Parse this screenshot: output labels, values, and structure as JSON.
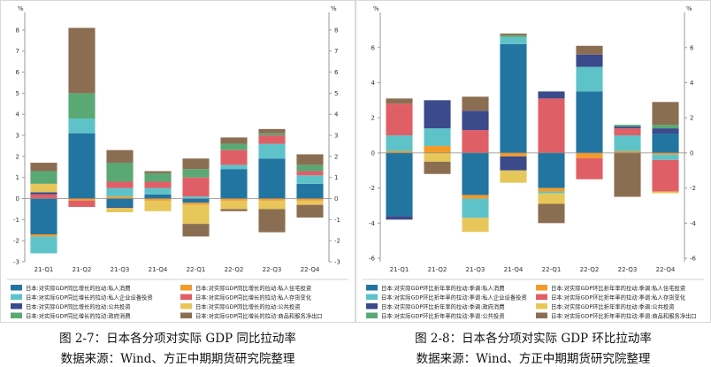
{
  "chart_data": [
    {
      "type": "bar",
      "stacked": true,
      "unit_label": "%",
      "categories": [
        "21-Q1",
        "21-Q2",
        "21-Q3",
        "21-Q4",
        "22-Q1",
        "22-Q2",
        "22-Q3",
        "22-Q4"
      ],
      "ylim": [
        -3,
        8.5
      ],
      "yticks": [
        -3,
        -2,
        -1,
        0,
        1,
        2,
        3,
        4,
        5,
        6,
        7,
        8
      ],
      "grid": false,
      "legend_position": "bottom",
      "series": [
        {
          "name": "日本:对实际GDP同比增长的拉动:私人消费",
          "color": "#2275a1",
          "values": [
            -1.7,
            3.1,
            -0.4,
            0.2,
            -0.2,
            1.4,
            1.9,
            0.7
          ]
        },
        {
          "name": "日本:对实际GDP同比增长的拉动:私人住宅投资",
          "color": "#f39b2a",
          "values": [
            -0.1,
            -0.1,
            0.1,
            -0.1,
            -0.1,
            -0.1,
            -0.1,
            -0.1
          ]
        },
        {
          "name": "日本:对实际GDP同比增长的拉动:私人企业设备投资",
          "color": "#5ec3c9",
          "values": [
            -0.8,
            0.7,
            0.4,
            0.3,
            0.1,
            0.2,
            0.7,
            0.4
          ]
        },
        {
          "name": "日本:对实际GDP同比增长的拉动:私人存货变化",
          "color": "#e05f67",
          "values": [
            0.2,
            -0.3,
            0.3,
            0.3,
            0.9,
            0.7,
            0.4,
            0.2
          ]
        },
        {
          "name": "日本:对实际GDP同比增长的拉动:公共投资",
          "color": "#3b4a8a",
          "values": [
            0.1,
            0.0,
            -0.05,
            0.0,
            0.0,
            0.0,
            0.0,
            0.0
          ]
        },
        {
          "name": "日本:对实际GDP同比增长的拉动:公共投资",
          "color": "#e8c75a",
          "values": [
            0.4,
            0.0,
            -0.2,
            -0.5,
            -0.9,
            -0.4,
            -0.4,
            -0.2
          ]
        },
        {
          "name": "日本:对实际GDP同比增长的拉动:政府消费",
          "color": "#5aa874",
          "values": [
            0.6,
            1.2,
            0.9,
            0.4,
            0.4,
            0.3,
            0.1,
            0.3
          ]
        },
        {
          "name": "日本:对实际GDP同比增长的拉动:商品和服务净出口",
          "color": "#8b6e52",
          "values": [
            0.4,
            3.1,
            0.6,
            0.1,
            0.5,
            0.3,
            0.2,
            0.5
          ]
        }
      ],
      "negative_extra": {
        "22-Q1": -0.6,
        "22-Q3": -1.1,
        "22-Q4": -0.6,
        "22-Q2": -0.1
      }
    },
    {
      "type": "bar",
      "stacked": true,
      "unit_label": "%",
      "categories": [
        "21-Q1",
        "21-Q2",
        "21-Q3",
        "21-Q4",
        "22-Q1",
        "22-Q2",
        "22-Q3",
        "22-Q4"
      ],
      "ylim": [
        -6.2,
        7.6
      ],
      "yticks": [
        -6,
        -4,
        -2,
        0,
        2,
        4,
        6
      ],
      "grid": false,
      "legend_position": "bottom",
      "series": [
        {
          "name": "日本:对实际GDP环比折年率的拉动:季调:私人消费",
          "color": "#2275a1",
          "values": [
            -3.6,
            0.0,
            -2.4,
            6.2,
            -2.0,
            3.5,
            0.0,
            1.1
          ]
        },
        {
          "name": "日本:对实际GDP环比折年率的拉动:季调:私人住宅投资",
          "color": "#f39b2a",
          "values": [
            0.1,
            0.4,
            -0.2,
            -0.2,
            -0.2,
            -0.3,
            0.1,
            -0.1
          ]
        },
        {
          "name": "日本:对实际GDP环比折年率的拉动:季调:私人企业设备投资",
          "color": "#5ec3c9",
          "values": [
            0.9,
            1.0,
            -1.1,
            0.4,
            -0.1,
            1.4,
            0.9,
            -0.3
          ]
        },
        {
          "name": "日本:对实际GDP环比折年率的拉动:季调:私人存货变化",
          "color": "#e05f67",
          "values": [
            1.8,
            0.0,
            1.3,
            0.0,
            3.1,
            -1.2,
            0.4,
            -1.8
          ]
        },
        {
          "name": "日本:对实际GDP环比折年率的拉动:季调:政府消费",
          "color": "#3b4a8a",
          "values": [
            -0.2,
            1.6,
            1.1,
            -0.8,
            0.4,
            0.7,
            0.1,
            0.3
          ]
        },
        {
          "name": "日本:对实际GDP环比折年率的拉动:季调:公共投资",
          "color": "#e8c75a",
          "values": [
            0.0,
            -0.5,
            -0.8,
            -0.7,
            -0.6,
            0.0,
            0.0,
            -0.1
          ]
        },
        {
          "name": "日本:对实际GDP环比折年率的拉动:季调:公共投资",
          "color": "#5aa874",
          "values": [
            0.0,
            0.0,
            0.0,
            0.1,
            0.0,
            0.0,
            0.1,
            0.2
          ]
        },
        {
          "name": "日本:对实际GDP环比折年率的拉动:季调:商品和服务净出口",
          "color": "#8b6e52",
          "values": [
            0.3,
            -0.7,
            0.8,
            0.1,
            -1.1,
            0.5,
            -2.5,
            1.3
          ]
        }
      ]
    }
  ],
  "captions": [
    {
      "title": "图 2-7：日本各分项对实际 GDP 同比拉动率",
      "source": "数据来源：Wind、方正中期期货研究院整理"
    },
    {
      "title": "图 2-8：日本各分项对实际 GDP 环比拉动率",
      "source": "数据来源：Wind、方正中期期货研究院整理"
    }
  ]
}
